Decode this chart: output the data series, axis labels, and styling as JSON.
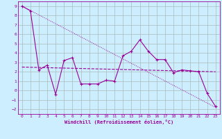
{
  "xlabel": "Windchill (Refroidissement éolien,°C)",
  "background_color": "#cceeff",
  "grid_color": "#aabbbb",
  "line_color": "#990099",
  "x_data": [
    0,
    1,
    2,
    3,
    4,
    5,
    6,
    7,
    8,
    9,
    10,
    11,
    12,
    13,
    14,
    15,
    16,
    17,
    18,
    19,
    20,
    21,
    22,
    23
  ],
  "y_data": [
    9,
    8.5,
    2.2,
    2.7,
    -0.4,
    3.2,
    3.5,
    0.7,
    0.7,
    0.7,
    1.1,
    1.0,
    3.7,
    4.2,
    5.4,
    4.2,
    3.3,
    3.3,
    1.9,
    2.2,
    2.1,
    2.0,
    -0.3,
    -1.7
  ],
  "trend_x": [
    0,
    23
  ],
  "trend_y": [
    2.5,
    2.0
  ],
  "trend2_x": [
    0,
    23
  ],
  "trend2_y": [
    9.0,
    -1.8
  ],
  "ylim": [
    -2.5,
    9.5
  ],
  "xlim": [
    -0.5,
    23.5
  ],
  "yticks": [
    -2,
    -1,
    0,
    1,
    2,
    3,
    4,
    5,
    6,
    7,
    8,
    9
  ],
  "xticks": [
    0,
    1,
    2,
    3,
    4,
    5,
    6,
    7,
    8,
    9,
    10,
    11,
    12,
    13,
    14,
    15,
    16,
    17,
    18,
    19,
    20,
    21,
    22,
    23
  ]
}
